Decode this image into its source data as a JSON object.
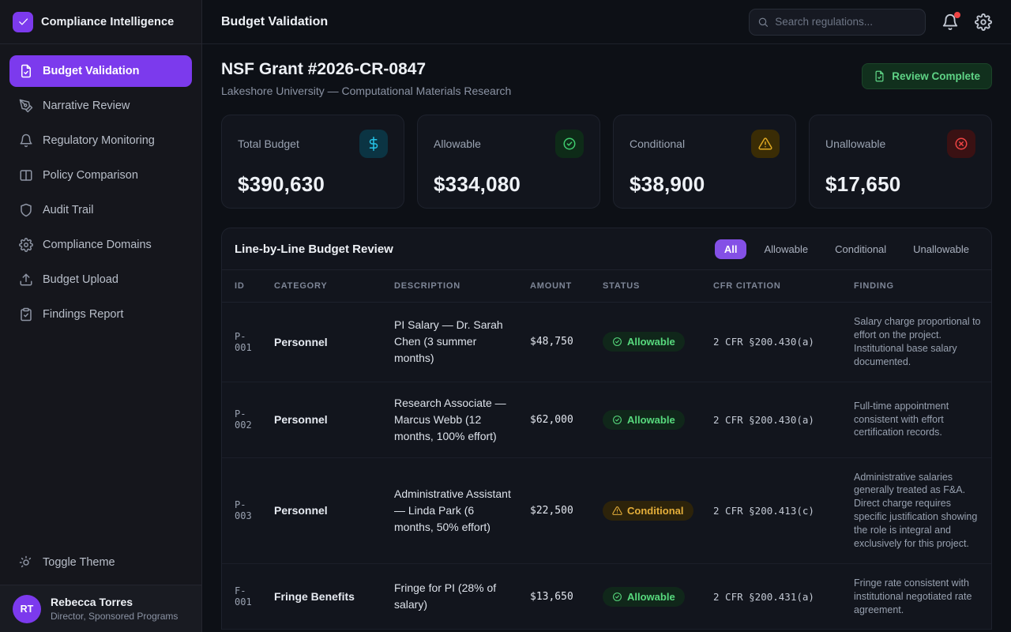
{
  "brand": {
    "name": "Compliance Intelligence"
  },
  "sidebar": {
    "items": [
      {
        "label": "Budget Validation",
        "icon": "file-check-icon",
        "active": true
      },
      {
        "label": "Narrative Review",
        "icon": "pen-tool-icon",
        "active": false
      },
      {
        "label": "Regulatory Monitoring",
        "icon": "bell-icon",
        "active": false
      },
      {
        "label": "Policy Comparison",
        "icon": "columns-icon",
        "active": false
      },
      {
        "label": "Audit Trail",
        "icon": "shield-icon",
        "active": false
      },
      {
        "label": "Compliance Domains",
        "icon": "gear-icon",
        "active": false
      },
      {
        "label": "Budget Upload",
        "icon": "upload-icon",
        "active": false
      },
      {
        "label": "Findings Report",
        "icon": "clipboard-check-icon",
        "active": false
      }
    ],
    "theme_toggle_label": "Toggle Theme",
    "user": {
      "initials": "RT",
      "name": "Rebecca Torres",
      "role": "Director, Sponsored Programs"
    }
  },
  "topbar": {
    "title": "Budget Validation",
    "search_placeholder": "Search regulations...",
    "has_notification": true
  },
  "grant": {
    "title": "NSF Grant #2026-CR-0847",
    "subtitle": "Lakeshore University — Computational Materials Research",
    "review_button_label": "Review Complete"
  },
  "stats": [
    {
      "label": "Total Budget",
      "value": "$390,630",
      "icon": "dollar-icon",
      "tile": "tile-budget"
    },
    {
      "label": "Allowable",
      "value": "$334,080",
      "icon": "check-circle-icon",
      "tile": "tile-allowable"
    },
    {
      "label": "Conditional",
      "value": "$38,900",
      "icon": "alert-triangle-icon",
      "tile": "tile-conditional"
    },
    {
      "label": "Unallowable",
      "value": "$17,650",
      "icon": "x-circle-icon",
      "tile": "tile-unallowable"
    }
  ],
  "table": {
    "title": "Line-by-Line Budget Review",
    "filters": [
      "All",
      "Allowable",
      "Conditional",
      "Unallowable"
    ],
    "active_filter": "All",
    "columns": [
      "ID",
      "CATEGORY",
      "DESCRIPTION",
      "AMOUNT",
      "STATUS",
      "CFR CITATION",
      "FINDING"
    ],
    "rows": [
      {
        "id": "P-001",
        "category": "Personnel",
        "description": "PI Salary — Dr. Sarah Chen (3 summer months)",
        "amount": "$48,750",
        "status": "Allowable",
        "citation": "2 CFR §200.430(a)",
        "finding": "Salary charge proportional to effort on the project. Institutional base salary documented."
      },
      {
        "id": "P-002",
        "category": "Personnel",
        "description": "Research Associate — Marcus Webb (12 months, 100% effort)",
        "amount": "$62,000",
        "status": "Allowable",
        "citation": "2 CFR §200.430(a)",
        "finding": "Full-time appointment consistent with effort certification records."
      },
      {
        "id": "P-003",
        "category": "Personnel",
        "description": "Administrative Assistant — Linda Park (6 months, 50% effort)",
        "amount": "$22,500",
        "status": "Conditional",
        "citation": "2 CFR §200.413(c)",
        "finding": "Administrative salaries generally treated as F&A. Direct charge requires specific justification showing the role is integral and exclusively for this project."
      },
      {
        "id": "F-001",
        "category": "Fringe Benefits",
        "description": "Fringe for PI (28% of salary)",
        "amount": "$13,650",
        "status": "Allowable",
        "citation": "2 CFR §200.431(a)",
        "finding": "Fringe rate consistent with institutional negotiated rate agreement."
      }
    ]
  },
  "colors": {
    "accent_purple": "#7c3aed",
    "allowable_green": "#57d97d",
    "conditional_amber": "#e4ae3a",
    "unallowable_red": "#ef4444",
    "budget_cyan": "#25c3e8",
    "notification_red": "#ef4444"
  }
}
